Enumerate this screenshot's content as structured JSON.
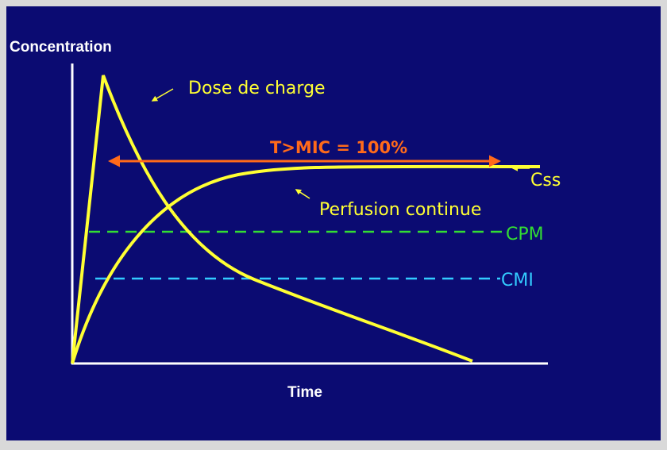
{
  "axes": {
    "y_label": "Concentration",
    "x_label": "Time"
  },
  "annotations": {
    "loading_dose": "Dose de charge",
    "time_above_mic": "T>MIC = 100%",
    "steady_state": "Css",
    "continuous_infusion": "Perfusion continue",
    "cpm": "CPM",
    "cmi": "CMI"
  }
}
